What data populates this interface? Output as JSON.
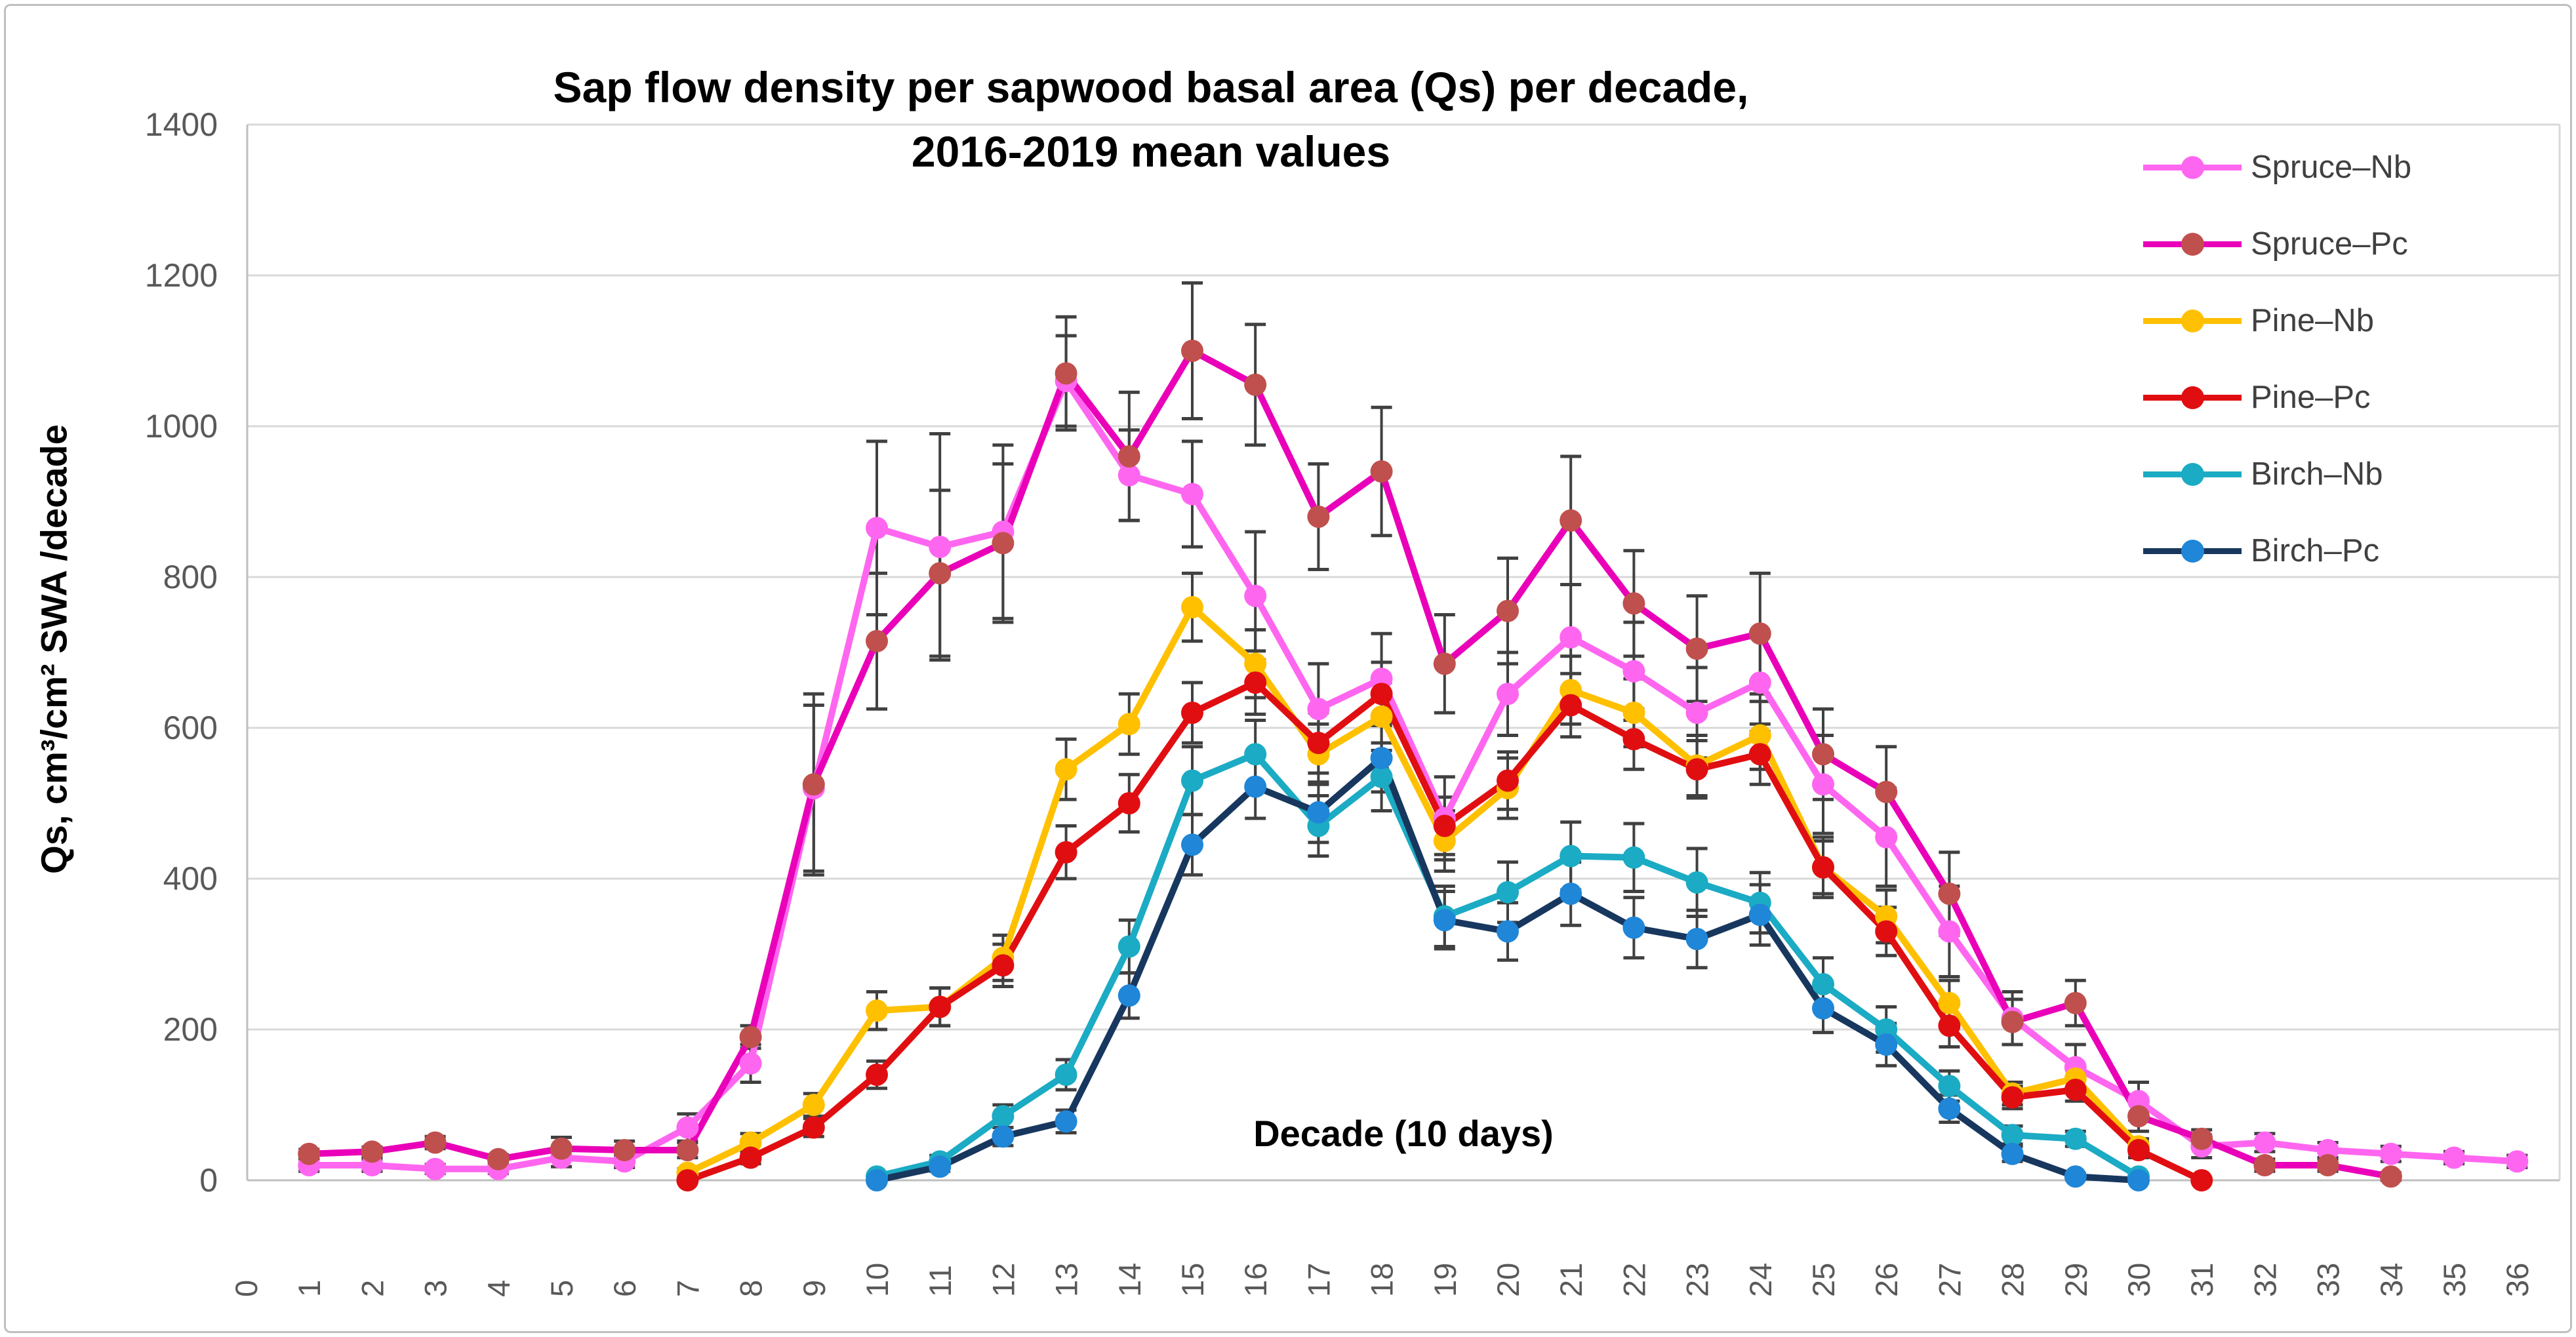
{
  "figure": {
    "title_line1": "Sap flow density per sapwood basal area (Qs) per decade,",
    "title_line2": "2016-2019 mean values",
    "y_axis_label": "Qs, cm³/cm² SWA /decade",
    "x_axis_label": "Decade (10 days)"
  },
  "colors": {
    "gridline": "#D9D9D9",
    "axis_line": "#BFBFBF",
    "error_bar": "#404040",
    "tick_text": "#595959",
    "legend_text": "#404040",
    "title_text": "#000000"
  },
  "chart_data": {
    "type": "line",
    "title": "Sap flow density per sapwood basal area (Qs) per decade, 2016-2019 mean values",
    "xlabel": "Decade (10 days)",
    "ylabel": "Qs, cm³/cm² SWA /decade",
    "ylim": [
      0,
      1400
    ],
    "y_ticks": [
      0,
      200,
      400,
      600,
      800,
      1000,
      1200,
      1400
    ],
    "x_tick_labels": [
      "0",
      "1",
      "2",
      "3",
      "4",
      "5",
      "6",
      "7",
      "8",
      "9",
      "10",
      "11",
      "12",
      "13",
      "14",
      "15",
      "16",
      "17",
      "18",
      "19",
      "20",
      "21",
      "22",
      "23",
      "24",
      "25",
      "26",
      "27",
      "28",
      "29",
      "30",
      "31",
      "32",
      "33",
      "34",
      "35",
      "36"
    ],
    "grid": true,
    "legend_position": "top-right",
    "series": [
      {
        "name": "Spruce–Nb",
        "line_color": "#FF66F0",
        "marker_color": "#FF66F0",
        "points": [
          [
            1,
            20
          ],
          [
            2,
            20
          ],
          [
            3,
            15
          ],
          [
            4,
            15
          ],
          [
            5,
            30
          ],
          [
            6,
            25
          ],
          [
            7,
            70
          ],
          [
            8,
            155
          ],
          [
            9,
            520
          ],
          [
            10,
            865
          ],
          [
            11,
            840
          ],
          [
            12,
            860
          ],
          [
            13,
            1060
          ],
          [
            14,
            935
          ],
          [
            15,
            910
          ],
          [
            16,
            775
          ],
          [
            17,
            625
          ],
          [
            18,
            665
          ],
          [
            19,
            480
          ],
          [
            20,
            645
          ],
          [
            21,
            720
          ],
          [
            22,
            675
          ],
          [
            23,
            620
          ],
          [
            24,
            660
          ],
          [
            25,
            525
          ],
          [
            26,
            455
          ],
          [
            27,
            330
          ],
          [
            28,
            215
          ],
          [
            29,
            150
          ],
          [
            30,
            105
          ],
          [
            31,
            45
          ],
          [
            32,
            50
          ],
          [
            33,
            40
          ],
          [
            34,
            35
          ],
          [
            35,
            30
          ],
          [
            36,
            25
          ]
        ],
        "errors": [
          8,
          8,
          6,
          6,
          12,
          8,
          18,
          25,
          110,
          115,
          150,
          115,
          60,
          60,
          70,
          85,
          60,
          60,
          55,
          55,
          70,
          65,
          60,
          65,
          65,
          65,
          60,
          35,
          30,
          25,
          15,
          12,
          10,
          10,
          8,
          8
        ]
      },
      {
        "name": "Spruce–Pc",
        "line_color": "#E900B8",
        "marker_color": "#C0504D",
        "points": [
          [
            1,
            35
          ],
          [
            2,
            38
          ],
          [
            3,
            50
          ],
          [
            4,
            28
          ],
          [
            5,
            42
          ],
          [
            6,
            40
          ],
          [
            7,
            40
          ],
          [
            8,
            190
          ],
          [
            9,
            525
          ],
          [
            10,
            715
          ],
          [
            11,
            805
          ],
          [
            12,
            845
          ],
          [
            13,
            1070
          ],
          [
            14,
            960
          ],
          [
            15,
            1100
          ],
          [
            16,
            1055
          ],
          [
            17,
            880
          ],
          [
            18,
            940
          ],
          [
            19,
            685
          ],
          [
            20,
            755
          ],
          [
            21,
            875
          ],
          [
            22,
            765
          ],
          [
            23,
            705
          ],
          [
            24,
            725
          ],
          [
            25,
            565
          ],
          [
            26,
            515
          ],
          [
            27,
            380
          ],
          [
            28,
            210
          ],
          [
            29,
            235
          ],
          [
            30,
            85
          ],
          [
            31,
            55
          ],
          [
            32,
            20
          ],
          [
            33,
            20
          ],
          [
            34,
            5
          ]
        ],
        "errors": [
          6,
          6,
          8,
          6,
          15,
          12,
          10,
          15,
          120,
          90,
          110,
          105,
          75,
          85,
          90,
          80,
          70,
          85,
          65,
          70,
          85,
          70,
          70,
          80,
          60,
          60,
          55,
          30,
          30,
          20,
          12,
          8,
          8,
          5
        ]
      },
      {
        "name": "Pine–Nb",
        "line_color": "#FFC000",
        "marker_color": "#FFC000",
        "points": [
          [
            7,
            10
          ],
          [
            8,
            50
          ],
          [
            9,
            100
          ],
          [
            10,
            225
          ],
          [
            11,
            230
          ],
          [
            12,
            295
          ],
          [
            13,
            545
          ],
          [
            14,
            605
          ],
          [
            15,
            760
          ],
          [
            16,
            685
          ],
          [
            17,
            565
          ],
          [
            18,
            615
          ],
          [
            19,
            450
          ],
          [
            20,
            520
          ],
          [
            21,
            650
          ],
          [
            22,
            620
          ],
          [
            23,
            550
          ],
          [
            24,
            590
          ],
          [
            25,
            415
          ],
          [
            26,
            350
          ],
          [
            27,
            235
          ],
          [
            28,
            115
          ],
          [
            29,
            135
          ],
          [
            30,
            45
          ]
        ],
        "errors": [
          5,
          12,
          15,
          25,
          25,
          30,
          40,
          40,
          45,
          45,
          40,
          45,
          40,
          40,
          45,
          45,
          40,
          45,
          40,
          35,
          30,
          15,
          15,
          10
        ]
      },
      {
        "name": "Pine–Pc",
        "line_color": "#E00E11",
        "marker_color": "#E00E11",
        "points": [
          [
            7,
            0
          ],
          [
            8,
            30
          ],
          [
            9,
            70
          ],
          [
            10,
            140
          ],
          [
            11,
            230
          ],
          [
            12,
            285
          ],
          [
            13,
            435
          ],
          [
            14,
            500
          ],
          [
            15,
            620
          ],
          [
            16,
            660
          ],
          [
            17,
            580
          ],
          [
            18,
            645
          ],
          [
            19,
            470
          ],
          [
            20,
            530
          ],
          [
            21,
            630
          ],
          [
            22,
            585
          ],
          [
            23,
            545
          ],
          [
            24,
            565
          ],
          [
            25,
            415
          ],
          [
            26,
            330
          ],
          [
            27,
            205
          ],
          [
            28,
            110
          ],
          [
            29,
            120
          ],
          [
            30,
            40
          ],
          [
            31,
            0
          ]
        ],
        "errors": [
          3,
          8,
          12,
          18,
          25,
          28,
          35,
          38,
          40,
          42,
          40,
          42,
          38,
          38,
          42,
          40,
          38,
          40,
          35,
          32,
          28,
          15,
          15,
          10,
          3
        ]
      },
      {
        "name": "Birch–Nb",
        "line_color": "#1BABC4",
        "marker_color": "#1BABC4",
        "points": [
          [
            10,
            5
          ],
          [
            11,
            25
          ],
          [
            12,
            85
          ],
          [
            13,
            140
          ],
          [
            14,
            310
          ],
          [
            15,
            530
          ],
          [
            16,
            565
          ],
          [
            17,
            470
          ],
          [
            18,
            535
          ],
          [
            19,
            350
          ],
          [
            20,
            382
          ],
          [
            21,
            430
          ],
          [
            22,
            428
          ],
          [
            23,
            395
          ],
          [
            24,
            368
          ],
          [
            25,
            260
          ],
          [
            26,
            200
          ],
          [
            27,
            125
          ],
          [
            28,
            60
          ],
          [
            29,
            55
          ],
          [
            30,
            5
          ]
        ],
        "errors": [
          3,
          8,
          15,
          20,
          35,
          45,
          45,
          40,
          45,
          40,
          40,
          45,
          45,
          45,
          40,
          35,
          30,
          20,
          12,
          10,
          3
        ]
      },
      {
        "name": "Birch–Pc",
        "line_color": "#17375E",
        "marker_color": "#1F86D8",
        "points": [
          [
            10,
            0
          ],
          [
            11,
            18
          ],
          [
            12,
            58
          ],
          [
            13,
            78
          ],
          [
            14,
            245
          ],
          [
            15,
            445
          ],
          [
            16,
            522
          ],
          [
            17,
            488
          ],
          [
            18,
            560
          ],
          [
            19,
            345
          ],
          [
            20,
            330
          ],
          [
            21,
            380
          ],
          [
            22,
            335
          ],
          [
            23,
            320
          ],
          [
            24,
            352
          ],
          [
            25,
            228
          ],
          [
            26,
            180
          ],
          [
            27,
            95
          ],
          [
            28,
            35
          ],
          [
            29,
            5
          ],
          [
            30,
            0
          ]
        ],
        "errors": [
          2,
          6,
          12,
          15,
          30,
          40,
          42,
          40,
          45,
          38,
          38,
          42,
          40,
          38,
          40,
          32,
          28,
          18,
          10,
          4,
          2
        ]
      }
    ]
  }
}
